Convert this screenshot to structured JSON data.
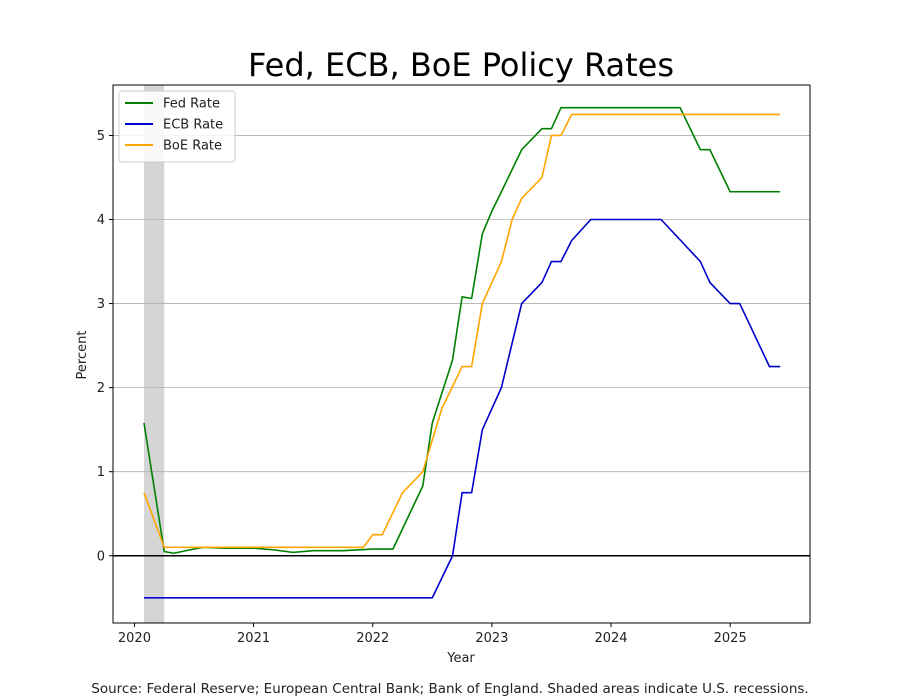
{
  "chart_data": {
    "type": "line",
    "title": "Fed, ECB, BoE Policy Rates",
    "xlabel": "Year",
    "ylabel": "Percent",
    "xlim": [
      2019.82,
      2025.67
    ],
    "ylim": [
      -0.8,
      5.6
    ],
    "xticks": [
      2020,
      2021,
      2022,
      2023,
      2024,
      2025
    ],
    "yticks": [
      0,
      1,
      2,
      3,
      4,
      5
    ],
    "grid": "horizontal",
    "legend_position": "top-left",
    "zero_line": true,
    "recession_shading": [
      [
        2020.08,
        2020.25
      ]
    ],
    "colors": {
      "Fed Rate": "#008000",
      "ECB Rate": "#0000cc",
      "BoE Rate": "#ffa500",
      "shade": "#d3d3d3"
    },
    "series": [
      {
        "name": "Fed Rate",
        "x": [
          2020.08,
          2020.25,
          2020.33,
          2020.5,
          2020.58,
          2020.75,
          2021.0,
          2021.17,
          2021.33,
          2021.5,
          2021.75,
          2022.0,
          2022.17,
          2022.42,
          2022.5,
          2022.67,
          2022.75,
          2022.83,
          2022.92,
          2023.0,
          2023.08,
          2023.25,
          2023.42,
          2023.5,
          2023.58,
          2023.75,
          2024.0,
          2024.58,
          2024.75,
          2024.83,
          2025.0,
          2025.42
        ],
        "values": [
          1.58,
          0.05,
          0.03,
          0.08,
          0.1,
          0.09,
          0.09,
          0.07,
          0.04,
          0.06,
          0.06,
          0.08,
          0.08,
          0.83,
          1.58,
          2.33,
          3.08,
          3.06,
          3.83,
          4.1,
          4.33,
          4.83,
          5.08,
          5.08,
          5.33,
          5.33,
          5.33,
          5.33,
          4.83,
          4.83,
          4.33,
          4.33
        ]
      },
      {
        "name": "ECB Rate",
        "x": [
          2020.08,
          2022.5,
          2022.67,
          2022.75,
          2022.83,
          2022.92,
          2023.08,
          2023.25,
          2023.42,
          2023.5,
          2023.58,
          2023.67,
          2023.83,
          2024.42,
          2024.75,
          2024.83,
          2025.0,
          2025.08,
          2025.33,
          2025.42
        ],
        "values": [
          -0.5,
          -0.5,
          0.0,
          0.75,
          0.75,
          1.5,
          2.0,
          3.0,
          3.25,
          3.5,
          3.5,
          3.75,
          4.0,
          4.0,
          3.5,
          3.25,
          3.0,
          3.0,
          2.25,
          2.25
        ]
      },
      {
        "name": "BoE Rate",
        "x": [
          2020.08,
          2020.25,
          2021.92,
          2022.0,
          2022.08,
          2022.25,
          2022.42,
          2022.58,
          2022.75,
          2022.83,
          2022.92,
          2023.08,
          2023.17,
          2023.25,
          2023.42,
          2023.5,
          2023.58,
          2023.67,
          2024.75,
          2025.0,
          2025.42
        ],
        "values": [
          0.75,
          0.1,
          0.1,
          0.25,
          0.25,
          0.75,
          1.0,
          1.75,
          2.25,
          2.25,
          3.0,
          3.5,
          4.0,
          4.25,
          4.5,
          5.0,
          5.0,
          5.25,
          5.25,
          5.25,
          5.25
        ]
      }
    ]
  },
  "source_note": "Source: Federal Reserve; European Central Bank; Bank of England. Shaded areas indicate U.S. recessions."
}
